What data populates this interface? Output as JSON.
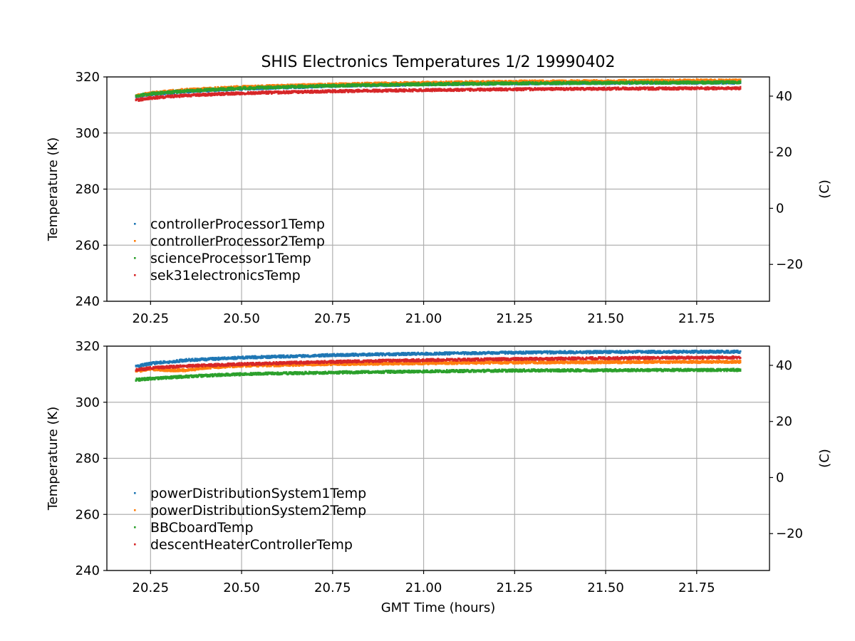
{
  "figure": {
    "title": "SHIS Electronics Temperatures 1/2 19990402"
  },
  "chart_data": [
    {
      "type": "scatter",
      "title": "SHIS Electronics Temperatures 1/2 19990402",
      "xlabel": "",
      "ylabel": "Temperature (K)",
      "y2label": "(C)",
      "xlim": [
        20.13,
        21.95
      ],
      "ylim": [
        240,
        320
      ],
      "y2lim": [
        -33.15,
        46.85
      ],
      "xticks": [
        20.25,
        20.5,
        20.75,
        21.0,
        21.25,
        21.5,
        21.75
      ],
      "xtick_labels": [
        "20.25",
        "20.50",
        "20.75",
        "21.00",
        "21.25",
        "21.50",
        "21.75"
      ],
      "yticks": [
        240,
        260,
        280,
        300,
        320
      ],
      "ytick_labels": [
        "240",
        "260",
        "280",
        "300",
        "320"
      ],
      "y2ticks": [
        -20,
        0,
        20,
        40
      ],
      "y2tick_labels": [
        "−20",
        "0",
        "20",
        "40"
      ],
      "grid": true,
      "legend": "lower-left",
      "series": [
        {
          "name": "controllerProcessor1Temp",
          "color": "#1f77b4",
          "x": [
            20.21,
            20.25,
            20.35,
            20.5,
            20.75,
            21.0,
            21.25,
            21.5,
            21.75,
            21.87
          ],
          "y": [
            313.0,
            313.8,
            314.8,
            315.8,
            316.8,
            317.4,
            317.7,
            317.9,
            318.0,
            318.0
          ]
        },
        {
          "name": "controllerProcessor2Temp",
          "color": "#ff7f0e",
          "x": [
            20.21,
            20.25,
            20.35,
            20.5,
            20.75,
            21.0,
            21.25,
            21.5,
            21.75,
            21.87
          ],
          "y": [
            313.3,
            314.3,
            315.4,
            316.4,
            317.3,
            317.9,
            318.3,
            318.5,
            318.7,
            318.7
          ]
        },
        {
          "name": "scienceProcessor1Temp",
          "color": "#2ca02c",
          "x": [
            20.21,
            20.25,
            20.35,
            20.5,
            20.75,
            21.0,
            21.25,
            21.5,
            21.75,
            21.87
          ],
          "y": [
            313.3,
            314.0,
            315.0,
            316.0,
            316.9,
            317.4,
            317.7,
            317.9,
            318.0,
            318.1
          ]
        },
        {
          "name": "sek31electronicsTemp",
          "color": "#d62728",
          "x": [
            20.21,
            20.25,
            20.35,
            20.5,
            20.75,
            21.0,
            21.25,
            21.5,
            21.75,
            21.87
          ],
          "y": [
            311.7,
            312.5,
            313.4,
            314.2,
            314.9,
            315.3,
            315.6,
            315.8,
            315.9,
            316.0
          ]
        }
      ]
    },
    {
      "type": "scatter",
      "title": "",
      "xlabel": "GMT Time (hours)",
      "ylabel": "Temperature (K)",
      "y2label": "(C)",
      "xlim": [
        20.13,
        21.95
      ],
      "ylim": [
        240,
        320
      ],
      "y2lim": [
        -33.15,
        46.85
      ],
      "xticks": [
        20.25,
        20.5,
        20.75,
        21.0,
        21.25,
        21.5,
        21.75
      ],
      "xtick_labels": [
        "20.25",
        "20.50",
        "20.75",
        "21.00",
        "21.25",
        "21.50",
        "21.75"
      ],
      "yticks": [
        240,
        260,
        280,
        300,
        320
      ],
      "ytick_labels": [
        "240",
        "260",
        "280",
        "300",
        "320"
      ],
      "y2ticks": [
        -20,
        0,
        20,
        40
      ],
      "y2tick_labels": [
        "−20",
        "0",
        "20",
        "40"
      ],
      "grid": true,
      "legend": "lower-left",
      "series": [
        {
          "name": "powerDistributionSystem1Temp",
          "color": "#1f77b4",
          "x": [
            20.21,
            20.25,
            20.35,
            20.5,
            20.75,
            21.0,
            21.25,
            21.5,
            21.75,
            21.87
          ],
          "y": [
            312.8,
            313.8,
            315.0,
            315.9,
            316.8,
            317.3,
            317.7,
            317.9,
            318.0,
            318.0
          ]
        },
        {
          "name": "powerDistributionSystem2Temp",
          "color": "#ff7f0e",
          "x": [
            20.21,
            20.25,
            20.3,
            20.35,
            20.4,
            20.5,
            20.75,
            21.0,
            21.25,
            21.5,
            21.75,
            21.87
          ],
          "y": [
            311.0,
            311.8,
            311.4,
            311.4,
            312.3,
            313.0,
            313.6,
            313.9,
            314.2,
            314.3,
            314.4,
            314.4
          ]
        },
        {
          "name": "BBCboardTemp",
          "color": "#2ca02c",
          "x": [
            20.21,
            20.25,
            20.3,
            20.4,
            20.5,
            20.75,
            21.0,
            21.25,
            21.5,
            21.75,
            21.87
          ],
          "y": [
            308.0,
            308.4,
            308.8,
            309.5,
            310.0,
            310.6,
            311.0,
            311.3,
            311.4,
            311.5,
            311.5
          ]
        },
        {
          "name": "descentHeaterControllerTemp",
          "color": "#d62728",
          "x": [
            20.21,
            20.25,
            20.35,
            20.5,
            20.75,
            21.0,
            21.25,
            21.5,
            21.75,
            21.87
          ],
          "y": [
            311.5,
            312.2,
            312.9,
            313.6,
            314.4,
            315.0,
            315.4,
            315.7,
            315.9,
            316.0
          ]
        }
      ]
    }
  ]
}
